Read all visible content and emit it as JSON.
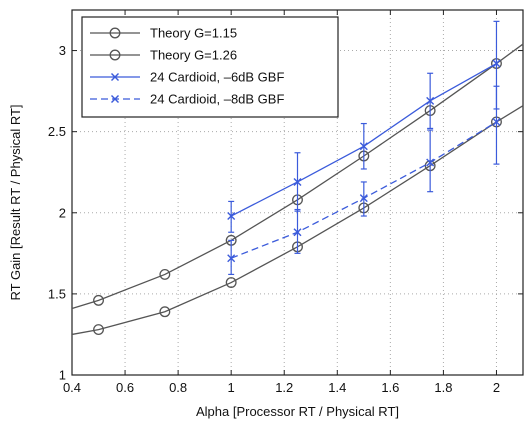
{
  "chart_data": {
    "type": "line",
    "title": "",
    "xlabel": "Alpha [Processor RT / Physical RT]",
    "ylabel": "RT Gain [Result RT / Physical RT]",
    "xlim": [
      0.4,
      2.1
    ],
    "ylim": [
      1,
      3.25
    ],
    "x_ticks": [
      {
        "value": 0.4,
        "label": "0.4"
      },
      {
        "value": 0.6,
        "label": "0.6"
      },
      {
        "value": 0.8,
        "label": "0.8"
      },
      {
        "value": 1.0,
        "label": "1"
      },
      {
        "value": 1.2,
        "label": "1.2"
      },
      {
        "value": 1.4,
        "label": "1.4"
      },
      {
        "value": 1.6,
        "label": "1.6"
      },
      {
        "value": 1.8,
        "label": "1.8"
      },
      {
        "value": 2.0,
        "label": "2"
      }
    ],
    "y_ticks": [
      {
        "value": 1.0,
        "label": "1"
      },
      {
        "value": 1.5,
        "label": "1.5"
      },
      {
        "value": 2.0,
        "label": "2"
      },
      {
        "value": 2.5,
        "label": "2.5"
      },
      {
        "value": 3.0,
        "label": "3"
      }
    ],
    "grid": true,
    "legend_position": "top-left",
    "series": [
      {
        "name": "Theory G=1.15",
        "color": "#555555",
        "line_style": "solid",
        "marker": "circle",
        "curve_x": [
          0.4,
          0.5,
          0.75,
          1.0,
          1.25,
          1.5,
          1.75,
          2.0,
          2.1
        ],
        "curve_y": [
          1.25,
          1.28,
          1.39,
          1.57,
          1.79,
          2.03,
          2.29,
          2.56,
          2.66
        ],
        "marker_x": [
          0.5,
          0.75,
          1.0,
          1.25,
          1.5,
          1.75,
          2.0
        ],
        "marker_y": [
          1.28,
          1.39,
          1.57,
          1.79,
          2.03,
          2.29,
          2.56
        ]
      },
      {
        "name": "Theory G=1.26",
        "color": "#555555",
        "line_style": "solid",
        "marker": "circle",
        "curve_x": [
          0.4,
          0.5,
          0.75,
          1.0,
          1.25,
          1.5,
          1.75,
          2.0,
          2.1
        ],
        "curve_y": [
          1.41,
          1.46,
          1.62,
          1.83,
          2.08,
          2.35,
          2.63,
          2.92,
          3.04
        ],
        "marker_x": [
          0.5,
          0.75,
          1.0,
          1.25,
          1.5,
          1.75,
          2.0
        ],
        "marker_y": [
          1.46,
          1.62,
          1.83,
          2.08,
          2.35,
          2.63,
          2.92
        ]
      },
      {
        "name": "24 Cardioid, –6dB GBF",
        "color": "#3b5bdb",
        "line_style": "solid",
        "marker": "x",
        "x": [
          1.0,
          1.25,
          1.5,
          1.75,
          2.0
        ],
        "y": [
          1.98,
          2.19,
          2.41,
          2.69,
          2.92
        ],
        "err_low": [
          1.88,
          2.01,
          2.27,
          2.52,
          2.64
        ],
        "err_high": [
          2.07,
          2.37,
          2.55,
          2.86,
          3.18
        ]
      },
      {
        "name": "24 Cardioid, –8dB GBF",
        "color": "#3b5bdb",
        "line_style": "dashed",
        "marker": "x",
        "x": [
          1.0,
          1.25,
          1.5,
          1.75,
          2.0
        ],
        "y": [
          1.72,
          1.88,
          2.09,
          2.31,
          2.56
        ],
        "err_low": [
          1.62,
          1.75,
          1.98,
          2.13,
          2.3
        ],
        "err_high": [
          1.83,
          2.02,
          2.19,
          2.51,
          2.78
        ]
      }
    ]
  }
}
